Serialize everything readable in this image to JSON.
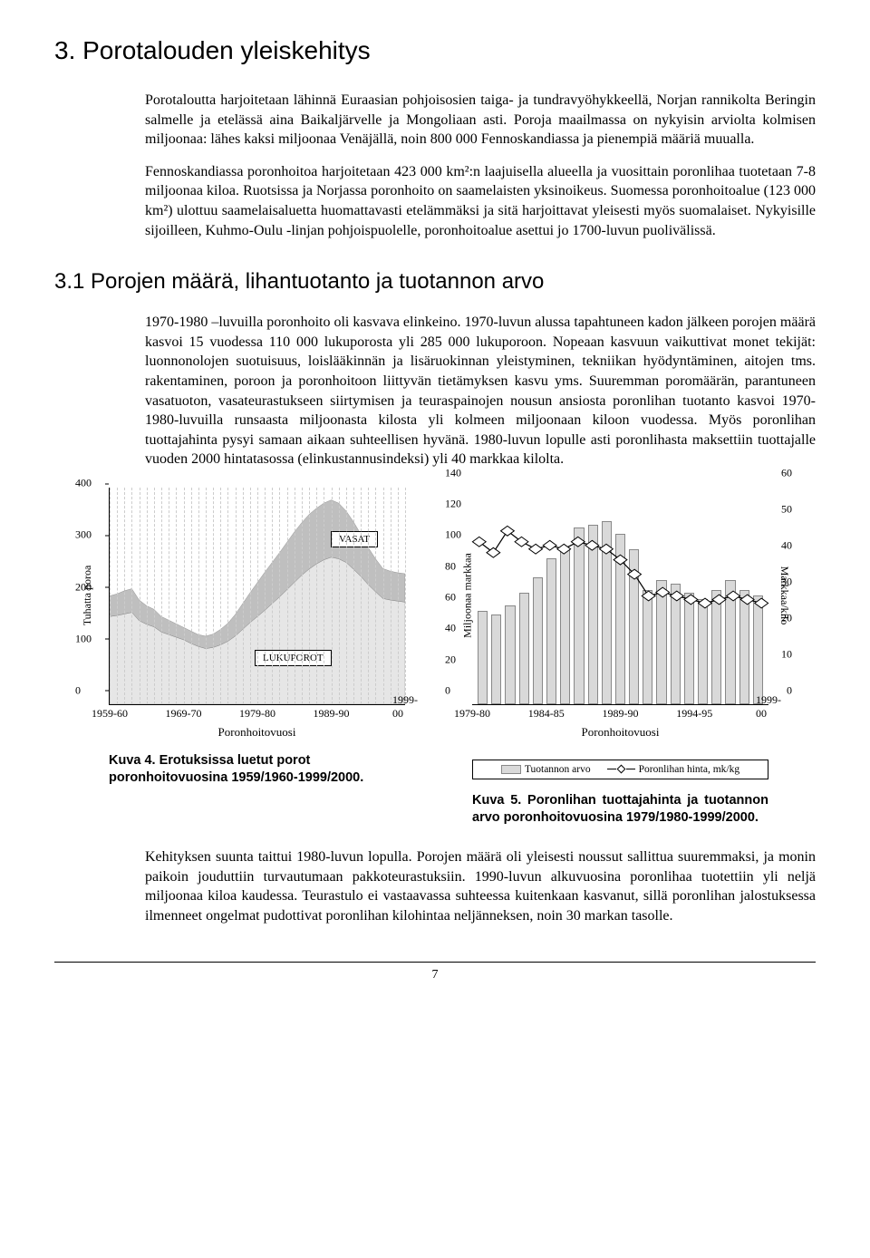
{
  "section_title": "3. Porotalouden yleiskehitys",
  "paragraphs": {
    "p1": "Porotaloutta harjoitetaan lähinnä Euraasian pohjoisosien taiga- ja tundravyöhykkeellä, Norjan rannikolta Beringin salmelle ja etelässä aina Baikaljärvelle ja Mongoliaan asti. Poroja maailmassa on nykyisin arviolta kolmisen miljoonaa: lähes kaksi miljoonaa Venäjällä, noin 800 000 Fennoskandiassa ja pienempiä määriä muualla.",
    "p2": "Fennoskandiassa poronhoitoa harjoitetaan 423 000 km²:n laajuisella alueella ja vuosittain poronlihaa tuotetaan 7-8 miljoonaa kiloa. Ruotsissa ja Norjassa poronhoito on saamelaisten yksinoikeus. Suomessa poronhoitoalue (123 000 km²) ulottuu saamelaisaluetta huomattavasti etelämmäksi ja sitä harjoittavat yleisesti myös suomalaiset. Nykyisille sijoilleen, Kuhmo-Oulu -linjan pohjoispuolelle, poronhoitoalue asettui jo 1700-luvun puolivälissä."
  },
  "subsection_title": "3.1 Porojen määrä, lihantuotanto ja tuotannon arvo",
  "paragraphs2": {
    "p3": "1970-1980 –luvuilla poronhoito oli kasvava elinkeino. 1970-luvun alussa tapahtuneen kadon jälkeen porojen määrä kasvoi 15 vuodessa 110 000 lukuporosta yli 285 000 lukuporoon. Nopeaan kasvuun vaikuttivat monet tekijät: luonnonolojen suotuisuus, loislääkinnän ja lisäruokinnan yleistyminen, tekniikan hyödyntäminen, aitojen tms. rakentaminen, poroon ja poronhoitoon liittyvän tietämyksen kasvu yms. Suuremman poromäärän, parantuneen vasatuoton, vasateurastukseen siirtymisen ja teuraspainojen nousun ansiosta poronlihan tuotanto kasvoi 1970-1980-luvuilla runsaasta miljoonasta kilosta yli kolmeen miljoonaan kiloon vuodessa. Myös poronlihan tuottajahinta pysyi samaan aikaan suhteellisen hyvänä. 1980-luvun lopulle asti poronlihasta maksettiin tuottajalle vuoden 2000 hintatasossa (elinkustannusindeksi) yli 40 markkaa kilolta."
  },
  "chart_left": {
    "type": "area",
    "y_label": "Tuhatta poroa",
    "y_ticks": [
      0,
      100,
      200,
      300,
      400
    ],
    "y_max": 420,
    "x_label": "Poronhoitovuosi",
    "x_ticks": [
      "1959-60",
      "1969-70",
      "1979-80",
      "1989-90",
      "1999-00"
    ],
    "legend_upper": "VASAT",
    "legend_lower": "LUKUPOROT",
    "series_lower_color": "#e6e6e6",
    "series_upper_color": "#bfbfbf",
    "caption": "Kuva 4. Erotuksissa luetut porot poronhoitovuosina 1959/1960-1999/2000.",
    "lower": [
      170,
      172,
      175,
      178,
      162,
      155,
      150,
      140,
      135,
      130,
      125,
      118,
      112,
      108,
      110,
      115,
      122,
      132,
      145,
      158,
      170,
      182,
      195,
      208,
      222,
      236,
      250,
      262,
      272,
      280,
      285,
      282,
      275,
      262,
      248,
      232,
      218,
      205,
      202,
      200,
      198
    ],
    "upper": [
      40,
      42,
      45,
      46,
      40,
      36,
      34,
      30,
      28,
      26,
      24,
      24,
      23,
      24,
      26,
      30,
      35,
      42,
      50,
      58,
      66,
      74,
      80,
      86,
      92,
      98,
      102,
      106,
      108,
      110,
      111,
      108,
      100,
      92,
      82,
      72,
      64,
      58,
      56,
      55,
      55
    ]
  },
  "chart_right": {
    "type": "bar-line",
    "y1_label": "Miljoonaa markkaa",
    "y2_label": "Markkaa/kilo",
    "x_label": "Poronhoitovuosi",
    "y1_ticks": [
      0,
      20,
      40,
      60,
      80,
      100,
      120,
      140
    ],
    "y1_max": 140,
    "y2_ticks": [
      0,
      10,
      20,
      30,
      40,
      50,
      60
    ],
    "y2_max": 60,
    "x_ticks": [
      "1979-80",
      "1984-85",
      "1989-90",
      "1994-95",
      "1999-00"
    ],
    "bar_color": "#d9d9d9",
    "bar_border": "#888888",
    "line_color": "#000000",
    "bars": [
      60,
      58,
      64,
      72,
      82,
      94,
      100,
      114,
      116,
      118,
      110,
      100,
      74,
      80,
      78,
      72,
      68,
      74,
      80,
      74,
      70
    ],
    "line": [
      45,
      42,
      48,
      45,
      43,
      44,
      43,
      45,
      44,
      43,
      40,
      36,
      30,
      31,
      30,
      29,
      28,
      29,
      30,
      29,
      28
    ],
    "legend_bar": "Tuotannon arvo",
    "legend_line": "Poronlihan hinta, mk/kg",
    "caption": "Kuva 5. Poronlihan tuottajahinta ja tuotannon arvo poronhoitovuosina 1979/1980-1999/2000."
  },
  "closing_paragraph": "Kehityksen suunta taittui 1980-luvun lopulla. Porojen määrä oli yleisesti noussut sallittua suuremmaksi, ja monin paikoin jouduttiin turvautumaan pakkoteurastuksiin. 1990-luvun alkuvuosina poronlihaa tuotettiin yli neljä miljoonaa kiloa kaudessa. Teurastulo ei vastaavassa suhteessa kuitenkaan kasvanut, sillä poronlihan jalostuksessa ilmenneet ongelmat pudottivat poronlihan kilohintaa neljänneksen, noin 30 markan tasolle.",
  "page_number": "7"
}
